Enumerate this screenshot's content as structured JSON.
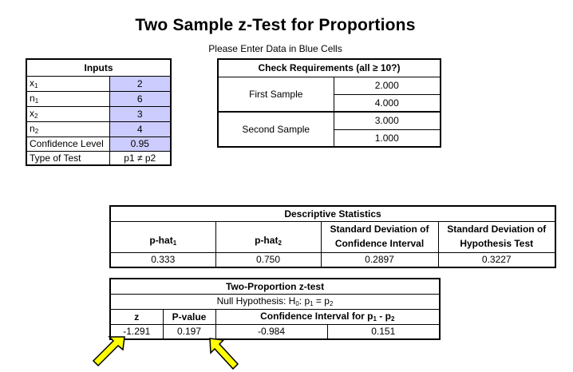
{
  "title": "Two Sample z-Test for Proportions",
  "subtitle": "Please Enter Data in Blue Cells",
  "inputs": {
    "header": "Inputs",
    "rows": [
      {
        "label": "x",
        "sub": "1",
        "value": "2"
      },
      {
        "label": "n",
        "sub": "1",
        "value": "6"
      },
      {
        "label": "x",
        "sub": "2",
        "value": "3"
      },
      {
        "label": "n",
        "sub": "2",
        "value": "4"
      },
      {
        "label": "Confidence Level",
        "sub": "",
        "value": "0.95"
      },
      {
        "label": "Type of Test",
        "sub": "",
        "value": "p1 ≠ p2"
      }
    ]
  },
  "requirements": {
    "header": "Check Requirements (all ≥ 10?)",
    "first_label": "First Sample",
    "first_values": [
      "2.000",
      "4.000"
    ],
    "second_label": "Second Sample",
    "second_values": [
      "3.000",
      "1.000"
    ]
  },
  "descriptive": {
    "header": "Descriptive Statistics",
    "col1": "p-hat",
    "col1_sub": "1",
    "col2": "p-hat",
    "col2_sub": "2",
    "col3_line1": "Standard Deviation of",
    "col3_line2": "Confidence Interval",
    "col4_line1": "Standard Deviation of",
    "col4_line2": "Hypothesis Test",
    "values": [
      "0.333",
      "0.750",
      "0.2897",
      "0.3227"
    ]
  },
  "ztest": {
    "header": "Two-Proportion z-test",
    "null_prefix": "Null Hypothesis:  H",
    "null_h_sub": "0",
    "null_mid": ":  p",
    "null_p1_sub": "1",
    "null_eq": " = p",
    "null_p2_sub": "2",
    "col_z": "z",
    "col_p": "P-value",
    "col_ci": "Confidence Interval  for p",
    "col_ci_sub1": "1",
    "col_ci_mid": " - p",
    "col_ci_sub2": "2",
    "z_value": "-1.291",
    "p_value": "0.197",
    "ci_low": "-0.984",
    "ci_high": "0.151"
  },
  "colors": {
    "input_cell": "#ccccff",
    "arrow_fill": "#ffff00",
    "arrow_stroke": "#000000"
  }
}
